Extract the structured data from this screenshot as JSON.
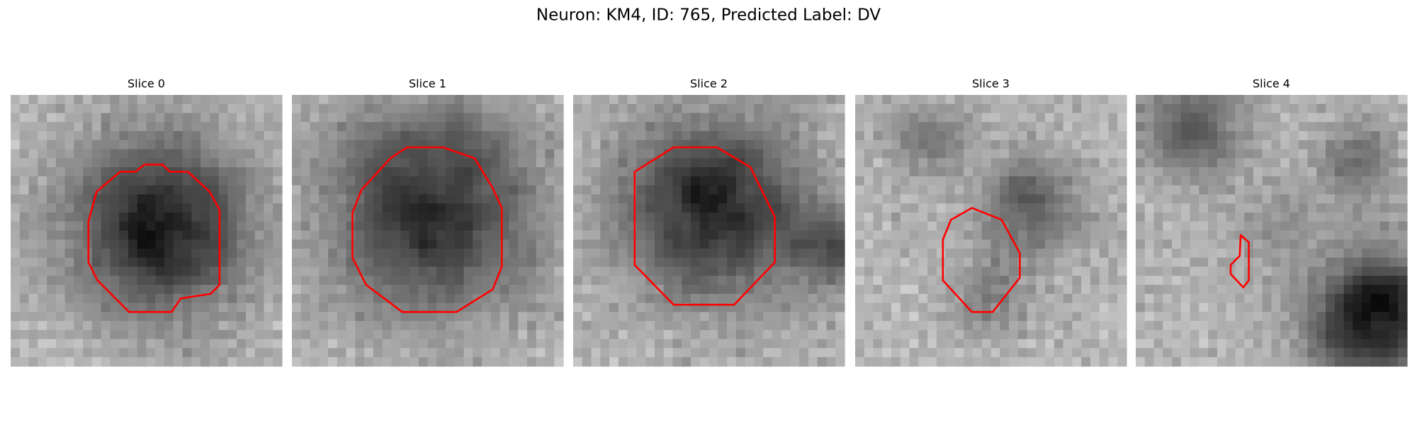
{
  "header": {
    "title": "Neuron: KM4, ID: 765, Predicted Label: DV"
  },
  "panels": [
    {
      "title": "Slice 0"
    },
    {
      "title": "Slice 1"
    },
    {
      "title": "Slice 2"
    },
    {
      "title": "Slice 3"
    },
    {
      "title": "Slice 4"
    }
  ]
}
